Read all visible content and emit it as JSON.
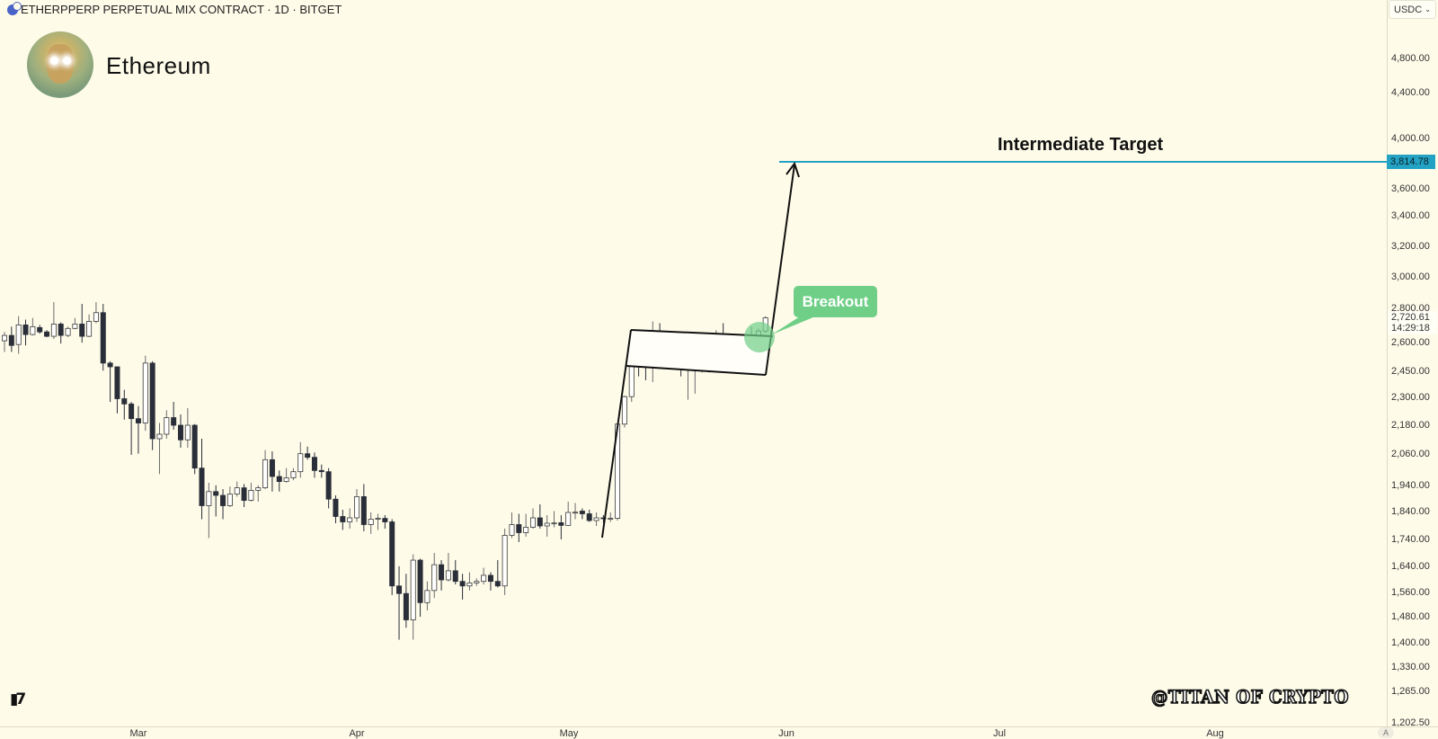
{
  "header": {
    "symbol_title": "ETHERPPERP PERPETUAL MIX CONTRACT · 1D · BITGET",
    "asset_name": "Ethereum",
    "icon": "ethereum-coin-icon"
  },
  "axis": {
    "currency_selector": "USDC",
    "auto_scale_button": "A"
  },
  "annotations": {
    "target_text": "Intermediate Target",
    "breakout_text": "Breakout",
    "watermark": "@TITAN OF CRYPTO",
    "tv_logo": "TV",
    "target_color": "#23a2c4",
    "breakout_color": "#6fcf87"
  },
  "chart_data": {
    "type": "candlestick",
    "title": "ETHERPPERP PERPETUAL MIX CONTRACT · 1D · BITGET",
    "interval": "1D",
    "y_scale": "log",
    "ylim": [
      1202.5,
      4800
    ],
    "y_ticks": [
      "4,800.00",
      "4,400.00",
      "4,000.00",
      "3,600.00",
      "3,400.00",
      "3,200.00",
      "3,000.00",
      "2,800.00",
      "2,600.00",
      "2,450.00",
      "2,300.00",
      "2,180.00",
      "2,060.00",
      "1,940.00",
      "1,840.00",
      "1,740.00",
      "1,640.00",
      "1,560.00",
      "1,480.00",
      "1,400.00",
      "1,330.00",
      "1,265.00",
      "1,202.50"
    ],
    "x_ticks": [
      "Mar",
      "Apr",
      "May",
      "Jun",
      "Jul",
      "Aug"
    ],
    "current_price": "2,720.61",
    "countdown": "14:29:18",
    "target_price": 3814.78,
    "target_price_label": "3,814.78",
    "up_color": "#ffffff",
    "down_color": "#2a2e39",
    "ohlc_fields": [
      "open",
      "high",
      "low",
      "close"
    ],
    "candles": [
      [
        2590,
        2640,
        2530,
        2620
      ],
      [
        2620,
        2670,
        2530,
        2565
      ],
      [
        2570,
        2730,
        2520,
        2680
      ],
      [
        2680,
        2710,
        2565,
        2625
      ],
      [
        2625,
        2720,
        2620,
        2670
      ],
      [
        2665,
        2680,
        2630,
        2640
      ],
      [
        2640,
        2650,
        2610,
        2615
      ],
      [
        2615,
        2810,
        2600,
        2685
      ],
      [
        2685,
        2695,
        2575,
        2620
      ],
      [
        2620,
        2670,
        2610,
        2660
      ],
      [
        2660,
        2720,
        2655,
        2685
      ],
      [
        2685,
        2800,
        2580,
        2615
      ],
      [
        2615,
        2740,
        2610,
        2700
      ],
      [
        2700,
        2810,
        2690,
        2750
      ],
      [
        2750,
        2800,
        2430,
        2470
      ],
      [
        2470,
        2480,
        2270,
        2450
      ],
      [
        2450,
        2450,
        2215,
        2285
      ],
      [
        2285,
        2330,
        2185,
        2260
      ],
      [
        2260,
        2270,
        2030,
        2190
      ],
      [
        2190,
        2250,
        2035,
        2170
      ],
      [
        2170,
        2510,
        2135,
        2470
      ],
      [
        2470,
        2480,
        2050,
        2100
      ],
      [
        2100,
        2170,
        1950,
        2120
      ],
      [
        2120,
        2230,
        2100,
        2195
      ],
      [
        2195,
        2270,
        2140,
        2160
      ],
      [
        2160,
        2210,
        2060,
        2095
      ],
      [
        2095,
        2240,
        2060,
        2160
      ],
      [
        2160,
        2165,
        1950,
        1975
      ],
      [
        1975,
        2100,
        1775,
        1825
      ],
      [
        1825,
        1915,
        1705,
        1880
      ],
      [
        1880,
        1905,
        1785,
        1865
      ],
      [
        1865,
        1890,
        1775,
        1825
      ],
      [
        1825,
        1900,
        1820,
        1870
      ],
      [
        1870,
        1920,
        1860,
        1895
      ],
      [
        1895,
        1910,
        1820,
        1845
      ],
      [
        1845,
        1915,
        1840,
        1885
      ],
      [
        1885,
        1905,
        1840,
        1895
      ],
      [
        1895,
        2050,
        1890,
        2010
      ],
      [
        2010,
        2045,
        1880,
        1940
      ],
      [
        1940,
        1965,
        1880,
        1920
      ],
      [
        1920,
        1975,
        1915,
        1935
      ],
      [
        1935,
        1975,
        1925,
        1960
      ],
      [
        1960,
        2085,
        1935,
        2035
      ],
      [
        2035,
        2065,
        2010,
        2020
      ],
      [
        2020,
        2040,
        1935,
        1965
      ],
      [
        1965,
        1990,
        1935,
        1960
      ],
      [
        1960,
        1975,
        1815,
        1850
      ],
      [
        1850,
        1865,
        1760,
        1785
      ],
      [
        1785,
        1810,
        1735,
        1765
      ],
      [
        1765,
        1815,
        1740,
        1780
      ],
      [
        1780,
        1890,
        1765,
        1860
      ],
      [
        1860,
        1910,
        1730,
        1755
      ],
      [
        1755,
        1800,
        1720,
        1775
      ],
      [
        1775,
        1795,
        1735,
        1778
      ],
      [
        1778,
        1790,
        1740,
        1765
      ],
      [
        1765,
        1775,
        1510,
        1540
      ],
      [
        1540,
        1605,
        1370,
        1515
      ],
      [
        1515,
        1580,
        1405,
        1430
      ],
      [
        1430,
        1645,
        1370,
        1625
      ],
      [
        1625,
        1630,
        1440,
        1485
      ],
      [
        1485,
        1555,
        1460,
        1525
      ],
      [
        1525,
        1650,
        1500,
        1610
      ],
      [
        1610,
        1625,
        1525,
        1560
      ],
      [
        1560,
        1650,
        1555,
        1590
      ],
      [
        1590,
        1625,
        1545,
        1555
      ],
      [
        1555,
        1580,
        1495,
        1540
      ],
      [
        1540,
        1585,
        1525,
        1550
      ],
      [
        1550,
        1565,
        1540,
        1555
      ],
      [
        1555,
        1600,
        1545,
        1575
      ],
      [
        1575,
        1585,
        1525,
        1555
      ],
      [
        1555,
        1625,
        1535,
        1540
      ],
      [
        1540,
        1740,
        1510,
        1715
      ],
      [
        1715,
        1800,
        1705,
        1755
      ],
      [
        1755,
        1795,
        1690,
        1725
      ],
      [
        1725,
        1795,
        1710,
        1745
      ],
      [
        1745,
        1815,
        1740,
        1780
      ],
      [
        1780,
        1830,
        1740,
        1750
      ],
      [
        1750,
        1790,
        1710,
        1760
      ],
      [
        1760,
        1805,
        1745,
        1761
      ],
      [
        1762,
        1790,
        1700,
        1752
      ],
      [
        1752,
        1840,
        1750,
        1800
      ],
      [
        1800,
        1835,
        1775,
        1801
      ],
      [
        1805,
        1815,
        1775,
        1795
      ],
      [
        1795,
        1810,
        1765,
        1770
      ],
      [
        1770,
        1800,
        1750,
        1780
      ],
      [
        1780,
        1790,
        1760,
        1778
      ],
      [
        1776,
        1800,
        1765,
        1778
      ],
      [
        1778,
        2170,
        1770,
        2165
      ],
      [
        2165,
        2300,
        2150,
        2295
      ],
      [
        2295,
        2560,
        2270,
        2540
      ],
      [
        2540,
        2600,
        2400,
        2465
      ],
      [
        2465,
        2580,
        2380,
        2450
      ],
      [
        2450,
        2700,
        2370,
        2640
      ],
      [
        2640,
        2690,
        2510,
        2570
      ],
      [
        2570,
        2610,
        2450,
        2515
      ],
      [
        2515,
        2600,
        2490,
        2500
      ],
      [
        2500,
        2500,
        2400,
        2440
      ],
      [
        2440,
        2540,
        2280,
        2455
      ],
      [
        2455,
        2500,
        2310,
        2485
      ],
      [
        2485,
        2560,
        2420,
        2486
      ],
      [
        2485,
        2580,
        2420,
        2505
      ],
      [
        2505,
        2650,
        2500,
        2620
      ],
      [
        2620,
        2690,
        2465,
        2485
      ],
      [
        2485,
        2530,
        2480,
        2487
      ],
      [
        2487,
        2515,
        2440,
        2510
      ],
      [
        2510,
        2560,
        2490,
        2525
      ],
      [
        2525,
        2670,
        2470,
        2620
      ],
      [
        2620,
        2660,
        2570,
        2645
      ],
      [
        2645,
        2730,
        2635,
        2720.61
      ]
    ]
  }
}
